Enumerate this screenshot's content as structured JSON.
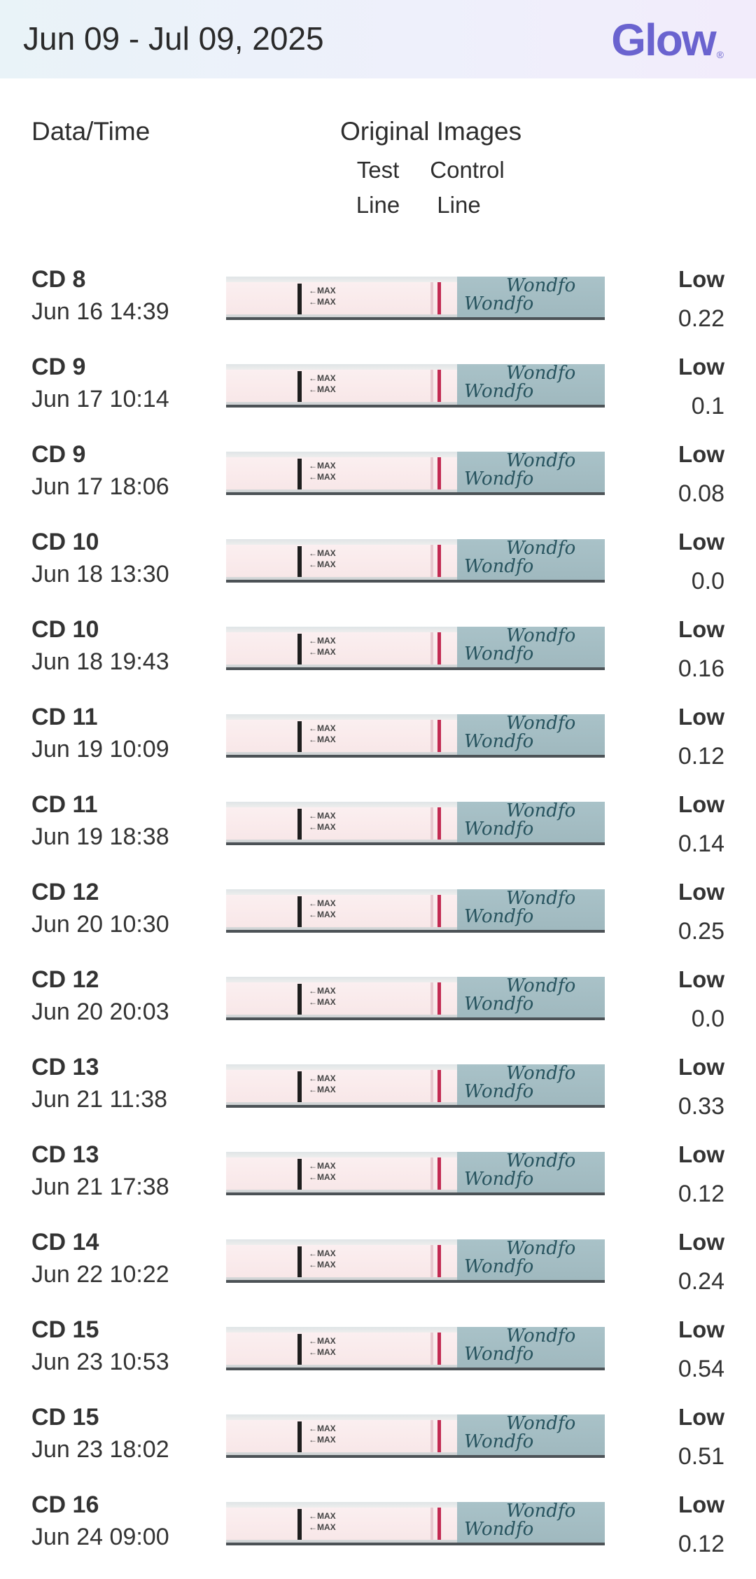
{
  "header": {
    "date_range": "Jun 09 - Jul 09, 2025",
    "logo_text": "Glow",
    "logo_mark": "®"
  },
  "columns": {
    "datetime": "Data/Time",
    "images": "Original Images",
    "test_line": [
      "Test",
      "Line"
    ],
    "control_line": [
      "Control",
      "Line"
    ]
  },
  "strip_labels": {
    "max": "←MAX",
    "brand": "Wondfo"
  },
  "rows": [
    {
      "cd": "CD 8",
      "datetime": "Jun 16 14:39",
      "level": "Low",
      "value": "0.22"
    },
    {
      "cd": "CD 9",
      "datetime": "Jun 17 10:14",
      "level": "Low",
      "value": "0.1"
    },
    {
      "cd": "CD 9",
      "datetime": "Jun 17 18:06",
      "level": "Low",
      "value": "0.08"
    },
    {
      "cd": "CD 10",
      "datetime": "Jun 18 13:30",
      "level": "Low",
      "value": "0.0"
    },
    {
      "cd": "CD 10",
      "datetime": "Jun 18 19:43",
      "level": "Low",
      "value": "0.16"
    },
    {
      "cd": "CD 11",
      "datetime": "Jun 19 10:09",
      "level": "Low",
      "value": "0.12"
    },
    {
      "cd": "CD 11",
      "datetime": "Jun 19 18:38",
      "level": "Low",
      "value": "0.14"
    },
    {
      "cd": "CD 12",
      "datetime": "Jun 20 10:30",
      "level": "Low",
      "value": "0.25"
    },
    {
      "cd": "CD 12",
      "datetime": "Jun 20 20:03",
      "level": "Low",
      "value": "0.0"
    },
    {
      "cd": "CD 13",
      "datetime": "Jun 21 11:38",
      "level": "Low",
      "value": "0.33"
    },
    {
      "cd": "CD 13",
      "datetime": "Jun 21 17:38",
      "level": "Low",
      "value": "0.12"
    },
    {
      "cd": "CD 14",
      "datetime": "Jun 22 10:22",
      "level": "Low",
      "value": "0.24"
    },
    {
      "cd": "CD 15",
      "datetime": "Jun 23 10:53",
      "level": "Low",
      "value": "0.54"
    },
    {
      "cd": "CD 15",
      "datetime": "Jun 23 18:02",
      "level": "Low",
      "value": "0.51"
    },
    {
      "cd": "CD 16",
      "datetime": "Jun 24 09:00",
      "level": "Low",
      "value": "0.12"
    }
  ],
  "colors": {
    "brand": "#6a63cf",
    "control_line": "#c22a52",
    "strip_blue": "#a9c2c8"
  }
}
